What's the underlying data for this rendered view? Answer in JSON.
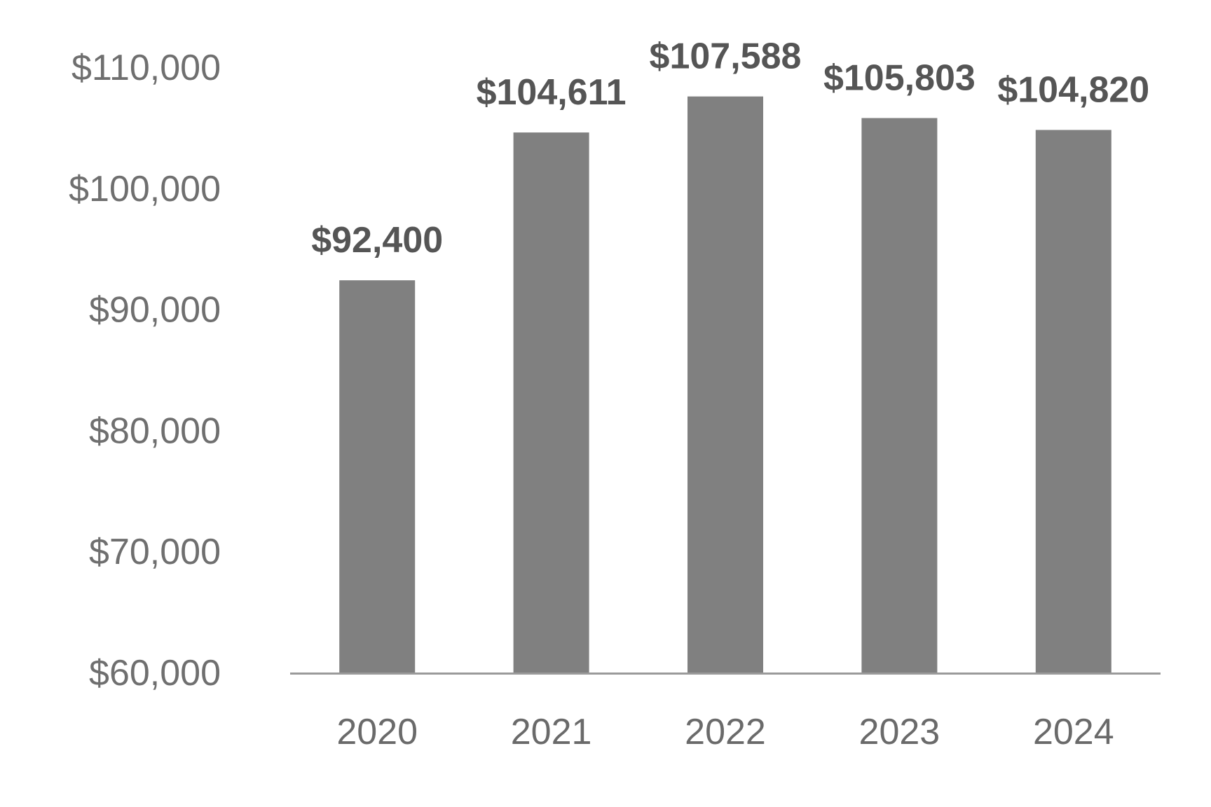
{
  "chart_data": {
    "type": "bar",
    "title": "",
    "xlabel": "",
    "ylabel": "",
    "categories": [
      "2020",
      "2021",
      "2022",
      "2023",
      "2024"
    ],
    "values": [
      92400,
      104611,
      107588,
      105803,
      104820
    ],
    "data_labels": [
      "$92,400",
      "$104,611",
      "$107,588",
      "$105,803",
      "$104,820"
    ],
    "ylim": [
      60000,
      110000
    ],
    "y_ticks": [
      60000,
      70000,
      80000,
      90000,
      100000,
      110000
    ],
    "y_tick_labels": [
      "$60,000",
      "$70,000",
      "$80,000",
      "$90,000",
      "$100,000",
      "$110,000"
    ],
    "grid": false,
    "legend": "none",
    "colors": {
      "bar": "#808080",
      "axis": "#9a9a9a",
      "tick_text": "#6f6f6f",
      "label_text": "#555555"
    }
  }
}
